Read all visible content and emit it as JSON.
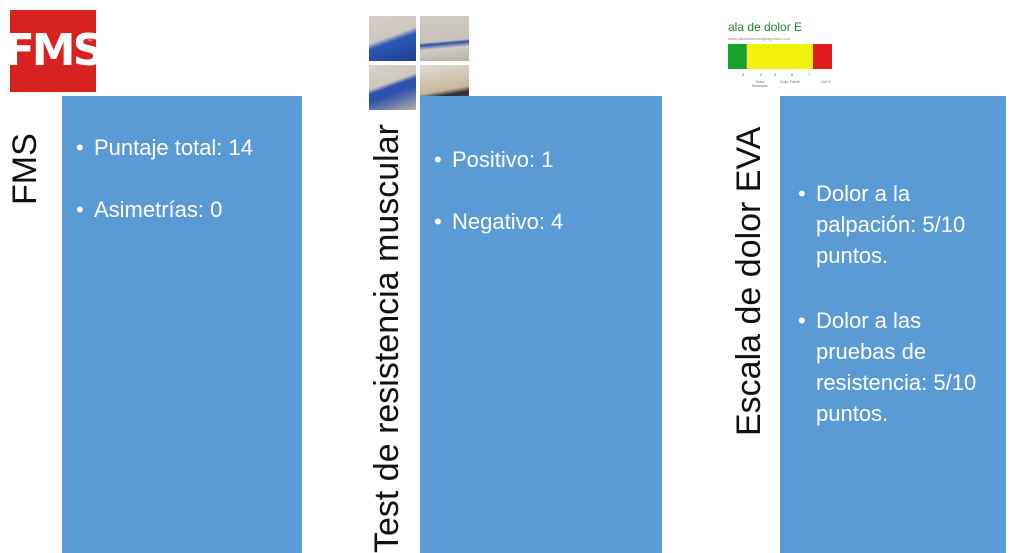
{
  "columns": [
    {
      "id": "fms",
      "label": "FMS",
      "image": {
        "kind": "logo",
        "text": "FMS",
        "mark": "™",
        "color": "#d7221f"
      },
      "bullets": [
        "Puntaje total: 14",
        "Asimetrías: 0"
      ]
    },
    {
      "id": "test",
      "label": "Test de resistencia muscular",
      "image": {
        "kind": "photo-grid",
        "description": "four exercise photos"
      },
      "bullets": [
        "Positivo: 1",
        "Negativo: 4"
      ]
    },
    {
      "id": "eva",
      "label": "Escala de dolor EVA",
      "image": {
        "kind": "pain-scale",
        "title": "ala de dolor E",
        "url": "www.paraaulicenaaguayprimo.com",
        "numbers": [
          "3",
          "4",
          "5",
          "6",
          "7"
        ],
        "words": [
          "Dolor Moderado",
          "Dolor Fuerte",
          "Dol %"
        ],
        "colors": [
          "#16a12f",
          "#f2f20c",
          "#e11b1b"
        ]
      },
      "bullets": [
        "Dolor a la palpación: 5/10 puntos.",
        "Dolor a las pruebas de resistencia: 5/10 puntos."
      ]
    }
  ],
  "colors": {
    "panel": "#5b9bd5",
    "panel_text": "#ffffff",
    "label_text": "#111111"
  }
}
